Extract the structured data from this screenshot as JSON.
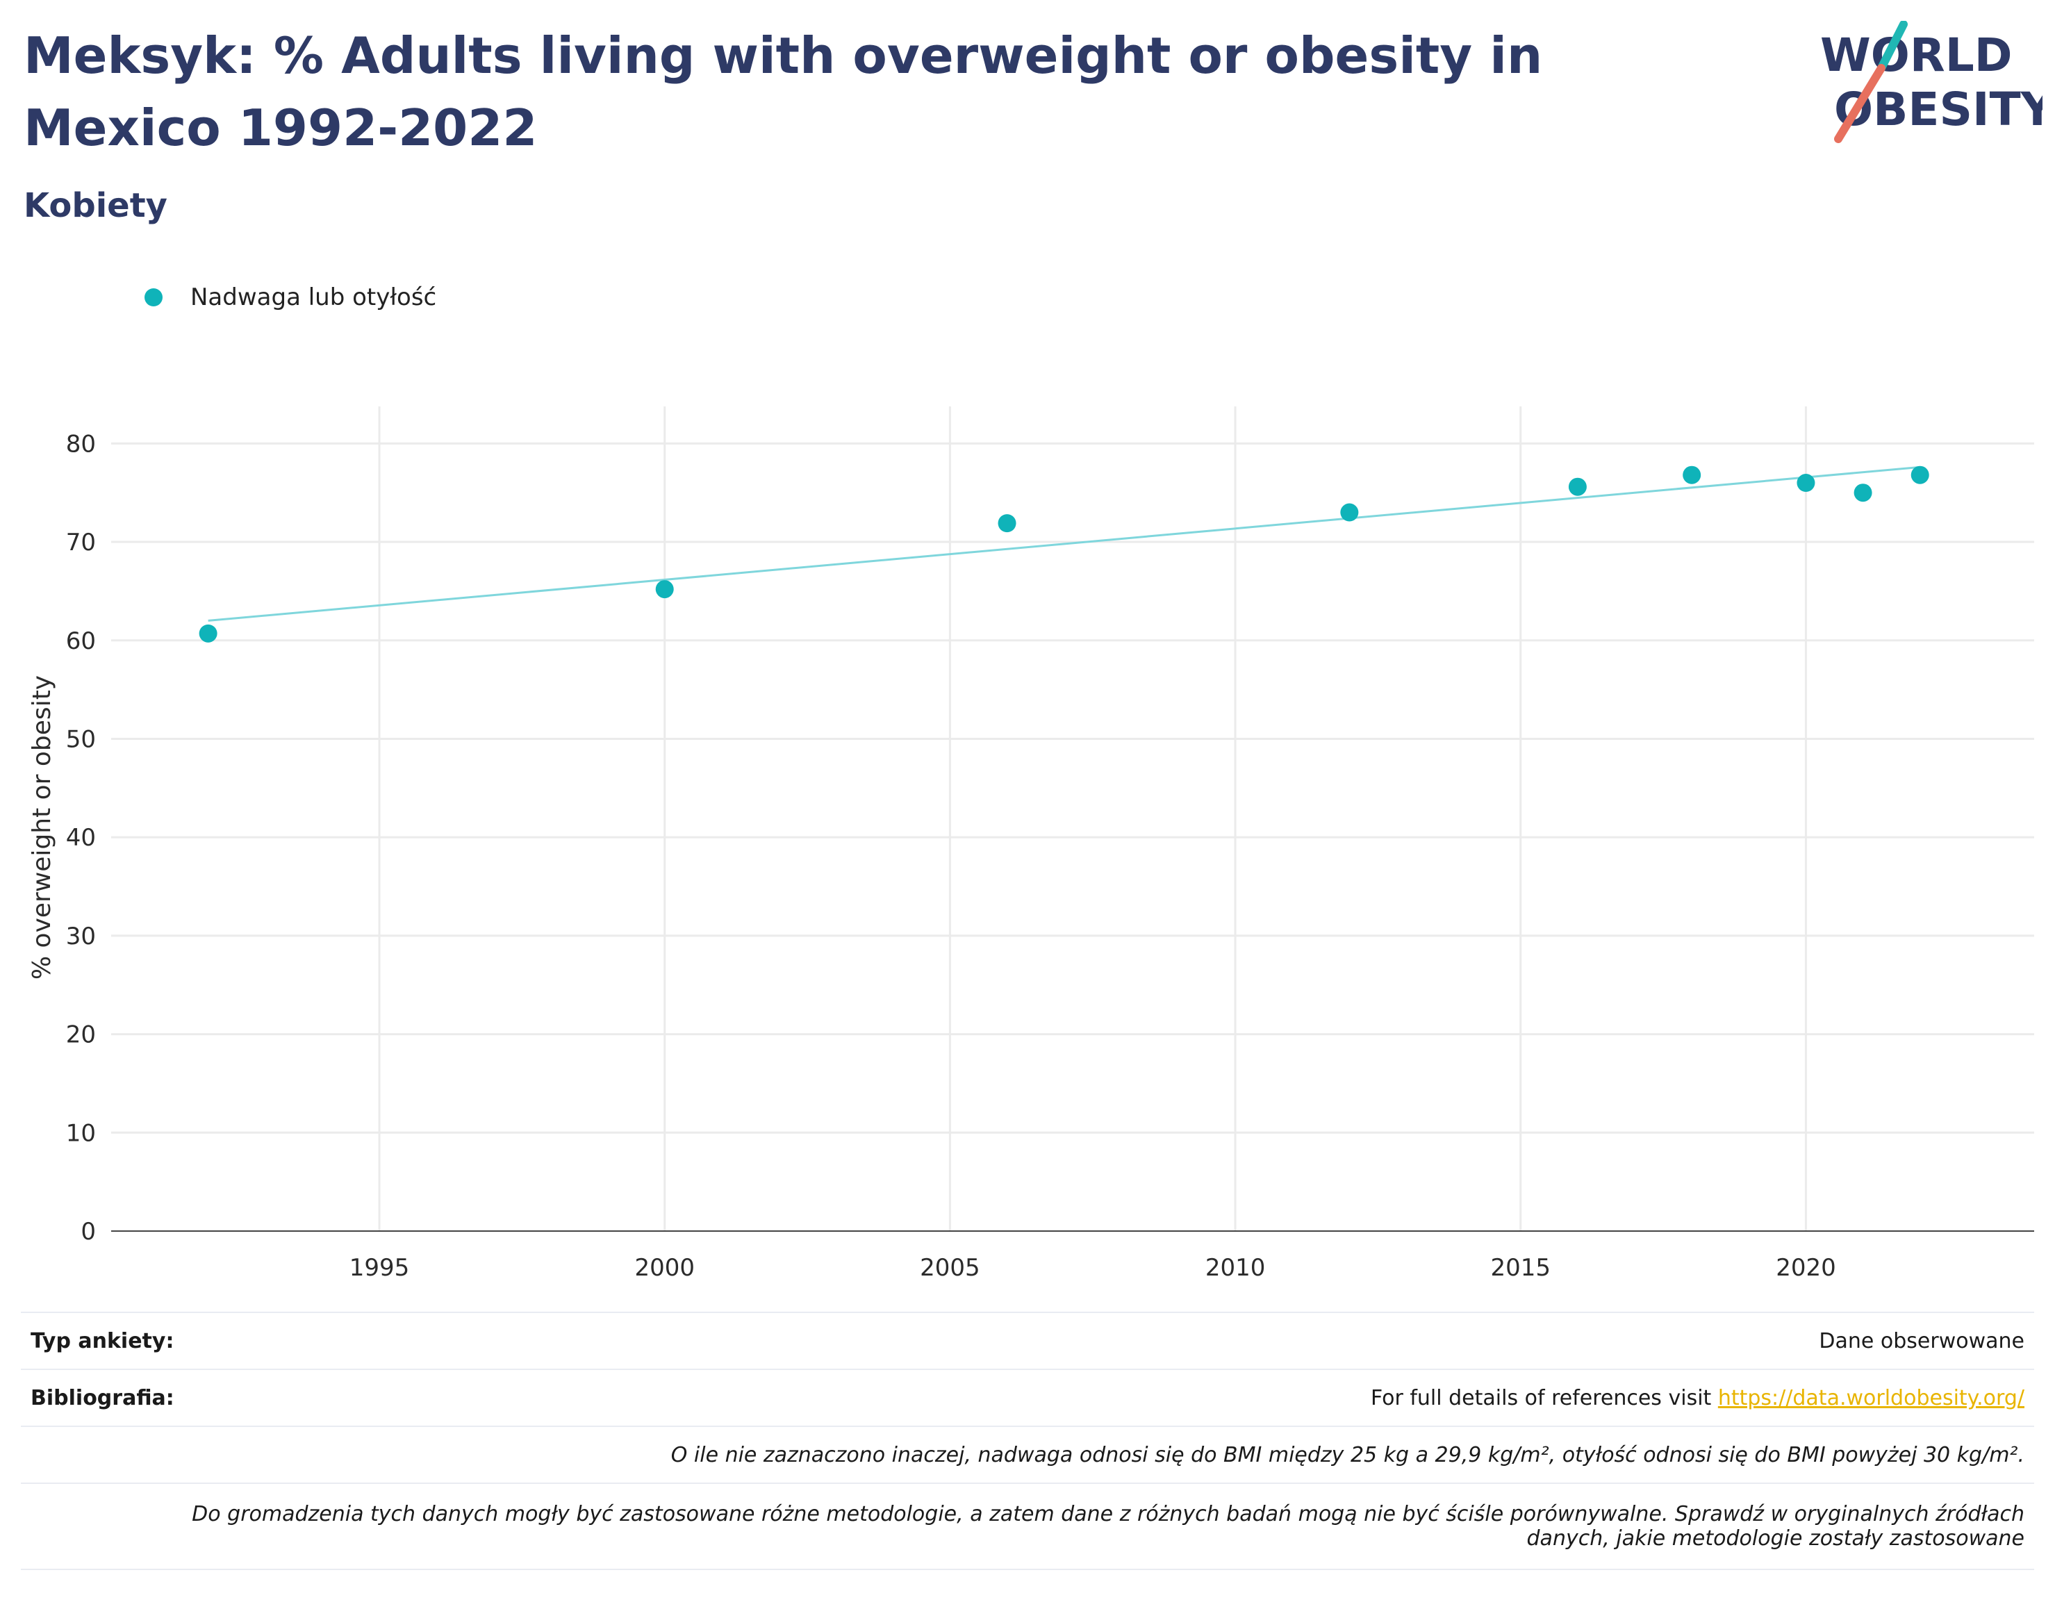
{
  "header": {
    "title": "Meksyk: % Adults living with overweight or obesity in Mexico 1992-2022",
    "subtitle": "Kobiety"
  },
  "logo": {
    "line1": "WORLD",
    "line2": "OBESITY"
  },
  "legend": {
    "label": "Nadwaga lub otyłość"
  },
  "colors": {
    "title": "#2e3a66",
    "point": "#0fb3b9",
    "trend": "#7fd6dc",
    "link": "#e8b400"
  },
  "chart_data": {
    "type": "scatter",
    "title": "Meksyk: % Adults living with overweight or obesity in Mexico 1992-2022",
    "subtitle": "Kobiety",
    "xlabel": "",
    "ylabel": "% overweight or obesity",
    "xlim": [
      1990.3,
      2024.0
    ],
    "ylim": [
      0,
      82
    ],
    "xticks": [
      1995,
      2000,
      2005,
      2010,
      2015,
      2020
    ],
    "yticks": [
      0,
      10,
      20,
      30,
      40,
      50,
      60,
      70,
      80
    ],
    "grid": true,
    "legend_position": "top-left",
    "series": [
      {
        "name": "Nadwaga lub otyłość",
        "x": [
          1992,
          2000,
          2006,
          2012,
          2016,
          2018,
          2020,
          2021,
          2022
        ],
        "y": [
          60.7,
          65.2,
          71.9,
          73.0,
          75.6,
          76.8,
          76.0,
          75.0,
          76.8
        ]
      }
    ],
    "trendline": {
      "x": [
        1992,
        2022
      ],
      "y": [
        62.0,
        77.6
      ]
    }
  },
  "info": {
    "survey_label": "Typ ankiety:",
    "survey_value": "Dane obserwowane",
    "bib_label": "Bibliografia:",
    "bib_text": "For full details of references visit",
    "bib_link": "https://data.worldobesity.org/",
    "note1": "O ile nie zaznaczono inaczej, nadwaga odnosi się do BMI między 25 kg a 29,9 kg/m², otyłość odnosi się do BMI powyżej 30 kg/m².",
    "note2_line1": "Do gromadzenia tych danych mogły być zastosowane różne metodologie, a zatem dane z różnych badań mogą nie być ściśle porównywalne. Sprawdź w oryginalnych źródłach",
    "note2_line2": "danych, jakie metodologie zostały zastosowane"
  }
}
